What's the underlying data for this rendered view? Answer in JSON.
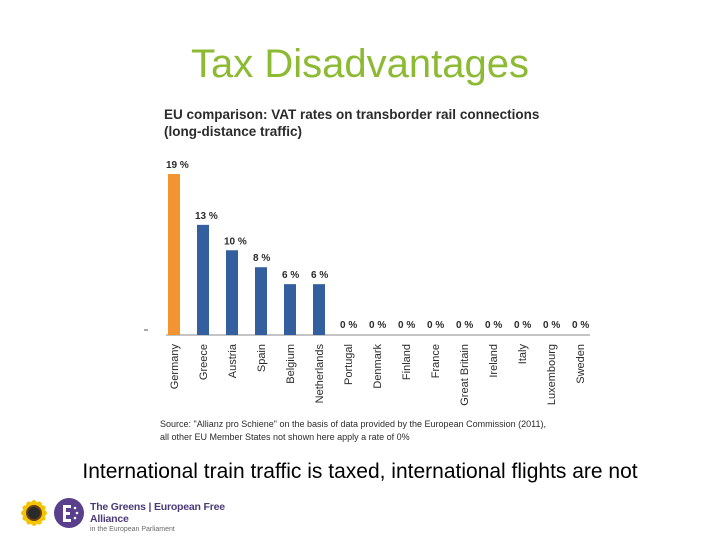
{
  "slide": {
    "title": "Tax Disadvantages",
    "caption": "International train traffic is taxed, international flights are not"
  },
  "chart_data": {
    "type": "bar",
    "title_line1": "EU comparison: VAT rates on transborder rail connections",
    "title_line2": "(long-distance traffic)",
    "categories": [
      "Germany",
      "Greece",
      "Austria",
      "Spain",
      "Belgium",
      "Netherlands",
      "Portugal",
      "Denmark",
      "Finland",
      "France",
      "Great Britain",
      "Ireland",
      "Italy",
      "Luxembourg",
      "Sweden"
    ],
    "values": [
      19,
      13,
      10,
      8,
      6,
      6,
      0,
      0,
      0,
      0,
      0,
      0,
      0,
      0,
      0
    ],
    "value_labels": [
      "19 %",
      "13 %",
      "10 %",
      "8 %",
      "6 %",
      "6 %",
      "0 %",
      "0 %",
      "0 %",
      "0 %",
      "0 %",
      "0 %",
      "0 %",
      "0 %",
      "0 %"
    ],
    "ylim": [
      0,
      19
    ],
    "grid": false,
    "colors": {
      "highlight": "#f39433",
      "default": "#335f9e"
    },
    "highlight_index": 0,
    "source_line1": "Source: \"Allianz pro Schiene\" on the basis of data provided by the European Commission (2011),",
    "source_line2": "all other EU Member States not shown here apply a rate of 0%"
  },
  "logo": {
    "name": "The Greens | European Free Alliance",
    "subtitle": "in the European Parliament"
  }
}
